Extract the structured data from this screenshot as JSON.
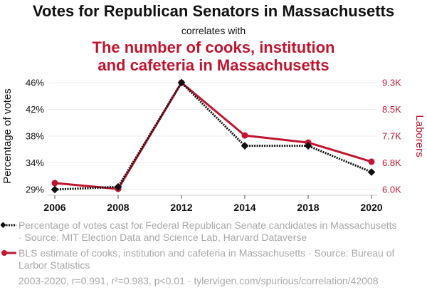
{
  "header": {
    "title": "Votes for Republican Senators in Massachusetts",
    "connector": "correlates with",
    "subtitle_line1": "The number of cooks, institution",
    "subtitle_line2": "and cafeteria in Massachusetts"
  },
  "legend": {
    "series1": "Percentage of votes cast for Federal Republican Senate candidates in Massachusetts · Source: MIT Election Data and Science Lab, Harvard Dataverse",
    "series2": "BLS estimate of cooks, institution and cafeteria in Massachusetts · Source: Bureau of Larbor Statistics"
  },
  "footer": "2003-2020, r=0.991, r²=0.983, p<0.01 · tylervigen.com/spurious/correlation/42008",
  "colors": {
    "series1": "#111111",
    "series2": "#c0152f",
    "grid": "#eeeeee",
    "muted_text": "#a8a8a8"
  },
  "chart_data": {
    "type": "line",
    "title": "Votes for Republican Senators in Massachusetts",
    "subtitle": "The number of cooks, institution and cafeteria in Massachusetts",
    "categories": [
      "2006",
      "2008",
      "2012",
      "2014",
      "2018",
      "2020"
    ],
    "grid": true,
    "legend_position": "bottom",
    "y_left": {
      "label": "Percentage of votes",
      "ticks": [
        "46%",
        "42%",
        "38%",
        "34%",
        "29%"
      ],
      "range": [
        30.1,
        46.0
      ]
    },
    "y_right": {
      "label": "Laborers",
      "ticks": [
        "9.3K",
        "8.5K",
        "7.7K",
        "6.8K",
        "6.0K"
      ],
      "range": [
        6000,
        9300
      ]
    },
    "series": [
      {
        "name": "Percentage of votes cast for Federal Republican Senate candidates in Massachusetts",
        "axis": "left",
        "style": "dotted",
        "marker": "diamond",
        "values": [
          30.1,
          30.5,
          46.0,
          36.6,
          36.6,
          32.7
        ]
      },
      {
        "name": "BLS estimate of cooks, institution and cafeteria in Massachusetts",
        "axis": "right",
        "style": "solid",
        "marker": "circle",
        "values": [
          6200,
          6020,
          9300,
          7670,
          7450,
          6860
        ]
      }
    ]
  }
}
